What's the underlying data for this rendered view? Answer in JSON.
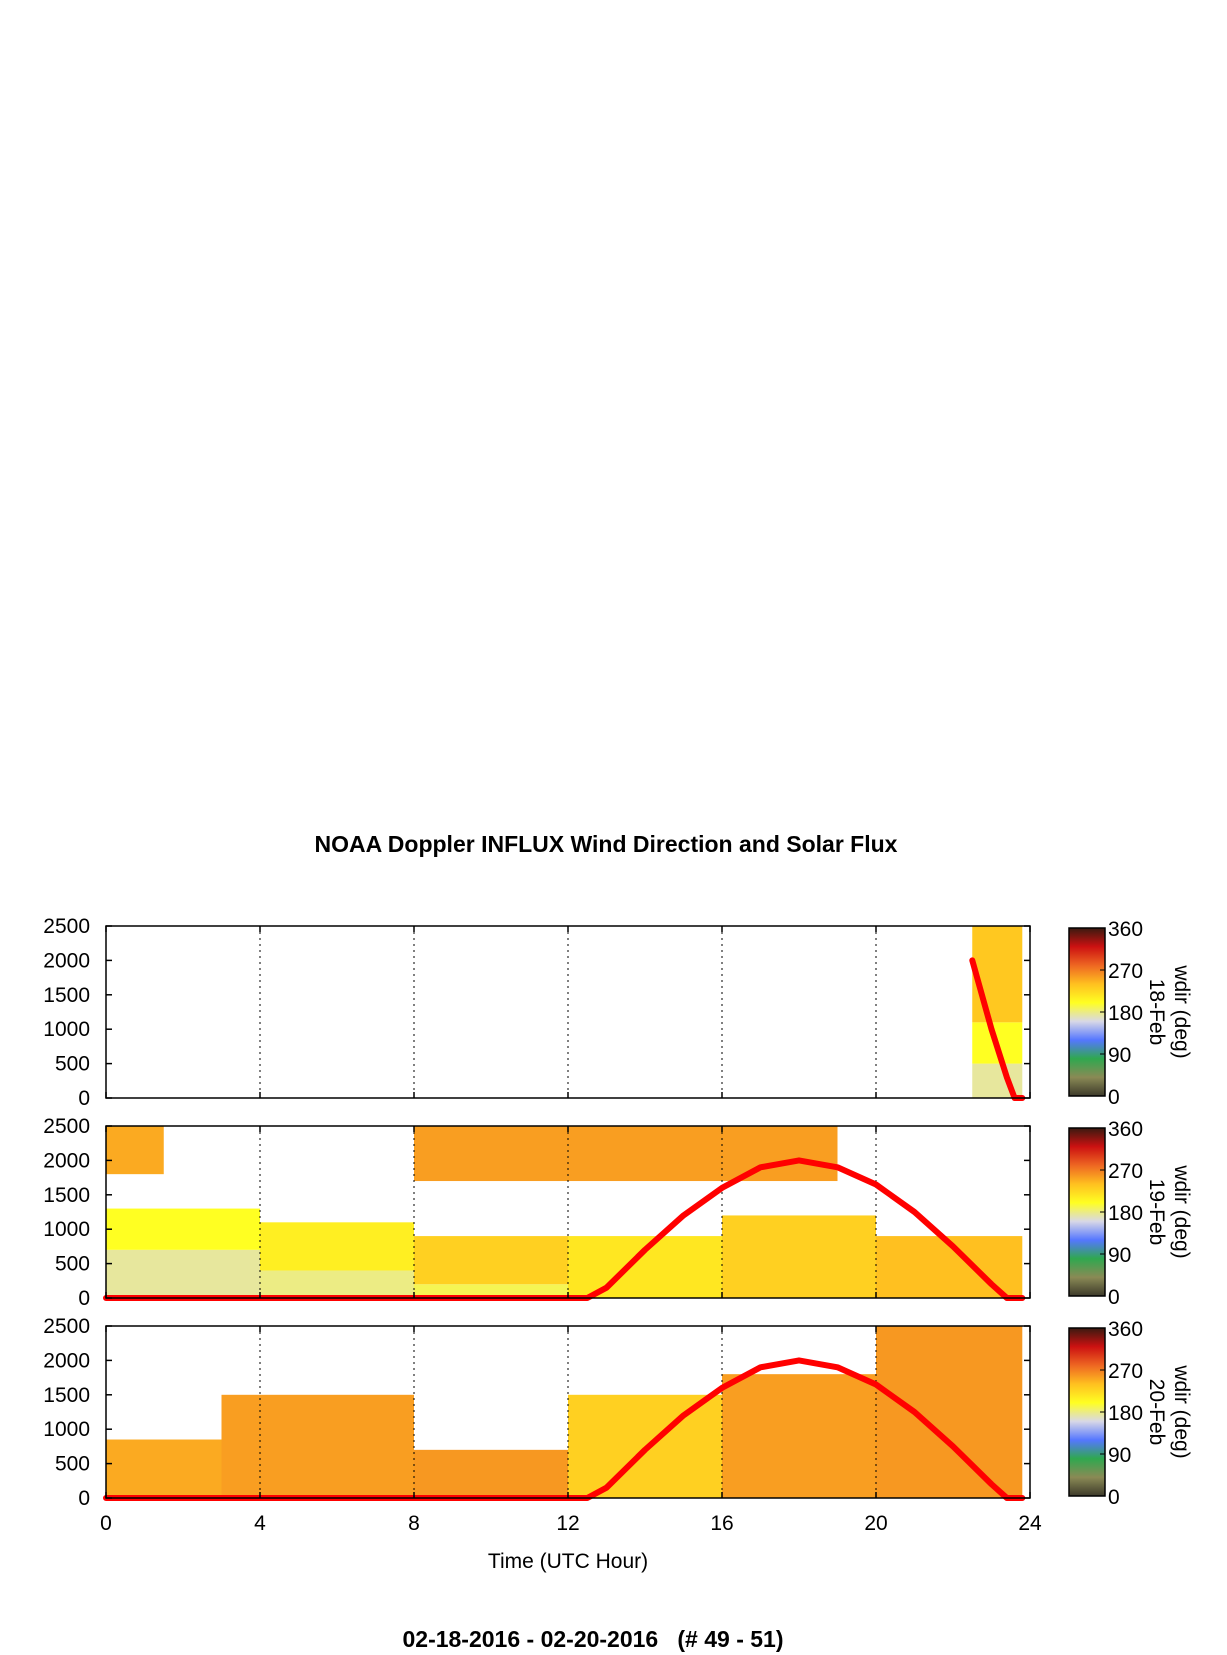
{
  "title": "NOAA Doppler INFLUX Wind Direction and Solar Flux",
  "footer": "02-18-2016 - 02-20-2016   (# 49 - 51)",
  "colors": {
    "solar_flux_line": "#ff0000",
    "colormap": [
      "#3d3a2a",
      "#8a8a55",
      "#2fa84f",
      "#5577ff",
      "#d8d8e6",
      "#ffff22",
      "#ffc020",
      "#ee6622",
      "#cc1111",
      "#3a1a10"
    ]
  },
  "chart_data": {
    "type": "heatmap",
    "xlabel": "Time (UTC Hour)",
    "xlim": [
      0,
      24
    ],
    "xticks": [
      0,
      4,
      8,
      12,
      16,
      20,
      24
    ],
    "ylim": [
      0,
      2500
    ],
    "yticks": [
      0,
      500,
      1000,
      1500,
      2000,
      2500
    ],
    "grid": "vertical dotted at 4-hour intervals",
    "colorbar": {
      "label": "wdir (deg)",
      "range": [
        0,
        360
      ],
      "ticks": [
        0,
        90,
        180,
        270,
        360
      ]
    },
    "panels": [
      {
        "label": "18-Feb",
        "solar_flux": {
          "x": [
            22.5,
            23.0,
            23.4,
            23.6,
            23.8
          ],
          "y": [
            2000,
            1000,
            300,
            0,
            0
          ]
        },
        "wind_direction_regions": [
          {
            "x": [
              22.5,
              23.8
            ],
            "y": [
              0,
              500
            ],
            "wdir": 175
          },
          {
            "x": [
              22.5,
              23.8
            ],
            "y": [
              500,
              1100
            ],
            "wdir": 200
          },
          {
            "x": [
              22.5,
              23.8
            ],
            "y": [
              1100,
              2500
            ],
            "wdir": 235
          }
        ]
      },
      {
        "label": "19-Feb",
        "solar_flux": {
          "x": [
            0,
            12.5,
            13,
            14,
            15,
            16,
            17,
            18,
            19,
            20,
            21,
            22,
            23,
            23.4,
            23.8
          ],
          "y": [
            0,
            0,
            150,
            700,
            1200,
            1600,
            1900,
            2000,
            1900,
            1650,
            1250,
            750,
            200,
            0,
            0
          ]
        },
        "wind_direction_regions": [
          {
            "x": [
              0,
              4
            ],
            "y": [
              0,
              700
            ],
            "wdir": 175
          },
          {
            "x": [
              0,
              4
            ],
            "y": [
              700,
              1300
            ],
            "wdir": 200
          },
          {
            "x": [
              4,
              8
            ],
            "y": [
              0,
              400
            ],
            "wdir": 180
          },
          {
            "x": [
              4,
              8
            ],
            "y": [
              400,
              1100
            ],
            "wdir": 210
          },
          {
            "x": [
              8,
              12
            ],
            "y": [
              0,
              200
            ],
            "wdir": 190
          },
          {
            "x": [
              8,
              12
            ],
            "y": [
              200,
              900
            ],
            "wdir": 230
          },
          {
            "x": [
              12,
              16
            ],
            "y": [
              0,
              900
            ],
            "wdir": 215
          },
          {
            "x": [
              16,
              20
            ],
            "y": [
              0,
              1200
            ],
            "wdir": 230
          },
          {
            "x": [
              20,
              23.8
            ],
            "y": [
              0,
              900
            ],
            "wdir": 240
          },
          {
            "x": [
              8,
              19
            ],
            "y": [
              1700,
              2500
            ],
            "wdir": 255
          },
          {
            "x": [
              0,
              1.5
            ],
            "y": [
              1800,
              2500
            ],
            "wdir": 250
          }
        ]
      },
      {
        "label": "20-Feb",
        "solar_flux": {
          "x": [
            0,
            12.5,
            13,
            14,
            15,
            16,
            17,
            18,
            19,
            20,
            21,
            22,
            23,
            23.4,
            23.8
          ],
          "y": [
            0,
            0,
            150,
            700,
            1200,
            1600,
            1900,
            2000,
            1900,
            1650,
            1250,
            750,
            200,
            0,
            0
          ]
        },
        "wind_direction_regions": [
          {
            "x": [
              0,
              3
            ],
            "y": [
              0,
              850
            ],
            "wdir": 250
          },
          {
            "x": [
              3,
              8
            ],
            "y": [
              0,
              1500
            ],
            "wdir": 255
          },
          {
            "x": [
              8,
              12
            ],
            "y": [
              0,
              700
            ],
            "wdir": 258
          },
          {
            "x": [
              12,
              16
            ],
            "y": [
              0,
              1500
            ],
            "wdir": 230
          },
          {
            "x": [
              16,
              20
            ],
            "y": [
              0,
              1800
            ],
            "wdir": 255
          },
          {
            "x": [
              20,
              23.8
            ],
            "y": [
              0,
              2500
            ],
            "wdir": 258
          }
        ]
      }
    ]
  }
}
